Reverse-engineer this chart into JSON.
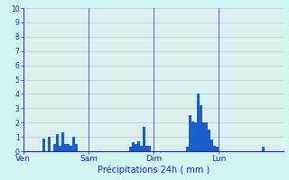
{
  "xlabel": "Précipitations 24h ( mm )",
  "background_color": "#cef5f0",
  "plot_bg_color": "#daf0ee",
  "bar_color": "#1a5fc8",
  "ylim": [
    0,
    10
  ],
  "yticks": [
    0,
    1,
    2,
    3,
    4,
    5,
    6,
    7,
    8,
    9,
    10
  ],
  "day_labels": [
    "Ven",
    "Sam",
    "Dim",
    "Lun"
  ],
  "num_days": 4,
  "bars_per_day": 24,
  "values": [
    0.0,
    0.0,
    0.0,
    0.0,
    0.0,
    0.0,
    0.0,
    0.9,
    0.0,
    1.0,
    0.0,
    0.5,
    1.2,
    0.4,
    1.3,
    0.5,
    0.5,
    0.4,
    1.0,
    0.5,
    0.0,
    0.0,
    0.0,
    0.0,
    0.0,
    0.0,
    0.0,
    0.0,
    0.0,
    0.0,
    0.0,
    0.0,
    0.0,
    0.0,
    0.0,
    0.0,
    0.0,
    0.0,
    0.0,
    0.3,
    0.6,
    0.5,
    0.7,
    0.4,
    1.7,
    0.4,
    0.35,
    0.0,
    0.0,
    0.0,
    0.0,
    0.0,
    0.0,
    0.0,
    0.0,
    0.0,
    0.0,
    0.0,
    0.0,
    0.0,
    0.3,
    2.5,
    2.1,
    2.0,
    4.0,
    3.2,
    2.0,
    2.0,
    1.5,
    0.8,
    0.4,
    0.3,
    0.0,
    0.0,
    0.0,
    0.0,
    0.0,
    0.0,
    0.0,
    0.0,
    0.0,
    0.0,
    0.0,
    0.0,
    0.0,
    0.0,
    0.0,
    0.0,
    0.3,
    0.0,
    0.0,
    0.0,
    0.0,
    0.0,
    0.0,
    0.0
  ],
  "grid_color": "#b8c8c8",
  "vline_color": "#6666aa",
  "spine_color": "#2222bb",
  "tick_color": "#2222bb",
  "label_color": "#2222bb"
}
